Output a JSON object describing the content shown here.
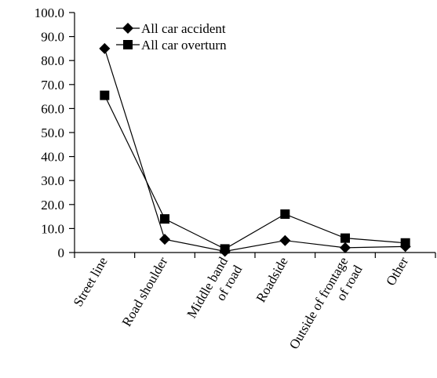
{
  "chart_data": {
    "type": "line",
    "title": "",
    "xlabel": "",
    "ylabel": "",
    "ylim": [
      0,
      100
    ],
    "yticks": [
      "0",
      "10.0",
      "20.0",
      "30.0",
      "40.0",
      "50.0",
      "60.0",
      "70.0",
      "80.0",
      "90.0",
      "100.0"
    ],
    "categories": [
      [
        "Street line"
      ],
      [
        "Road shoulder"
      ],
      [
        "Middle band",
        "of road"
      ],
      [
        "Roadside"
      ],
      [
        "Outside of frontage",
        "of road"
      ],
      [
        "Other"
      ]
    ],
    "series": [
      {
        "name": "All car accident",
        "marker": "diamond",
        "values": [
          85.0,
          5.5,
          0.5,
          5.0,
          2.0,
          2.5
        ]
      },
      {
        "name": "All car overturn",
        "marker": "square",
        "values": [
          65.5,
          14.0,
          1.5,
          16.0,
          6.0,
          4.0
        ]
      }
    ],
    "grid": false,
    "legend": "top-center",
    "color": "#000000"
  }
}
